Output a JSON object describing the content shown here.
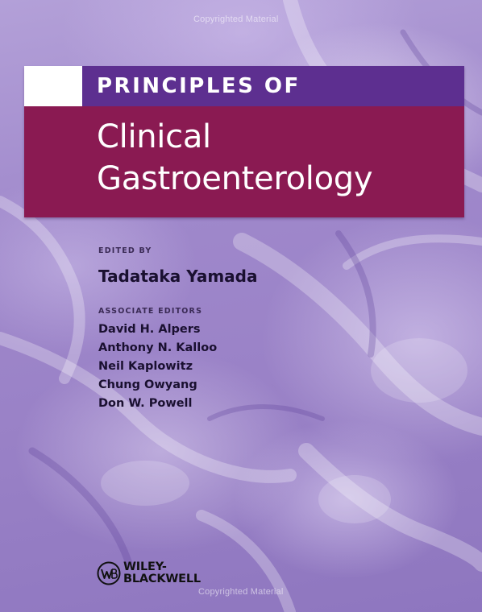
{
  "watermark": {
    "top": "Copyrighted Material",
    "bottom": "Copyrighted Material"
  },
  "title": {
    "series": "PRINCIPLES OF",
    "line1": "Clinical",
    "line2": "Gastroenterology"
  },
  "editors": {
    "edited_by_label": "EDITED BY",
    "editor": "Tadataka Yamada",
    "associate_label": "ASSOCIATE EDITORS",
    "associates": [
      "David H. Alpers",
      "Anthony N. Kalloo",
      "Neil Kaplowitz",
      "Chung Owyang",
      "Don W. Powell"
    ]
  },
  "publisher": {
    "line1": "WILEY-",
    "line2": "BLACKWELL",
    "logo_icon": "wiley-wb-logo"
  },
  "colors": {
    "background": "#9f88cb",
    "series_band": "#5d2f90",
    "title_band": "#8a1a52",
    "text_dark": "#1a1030"
  }
}
